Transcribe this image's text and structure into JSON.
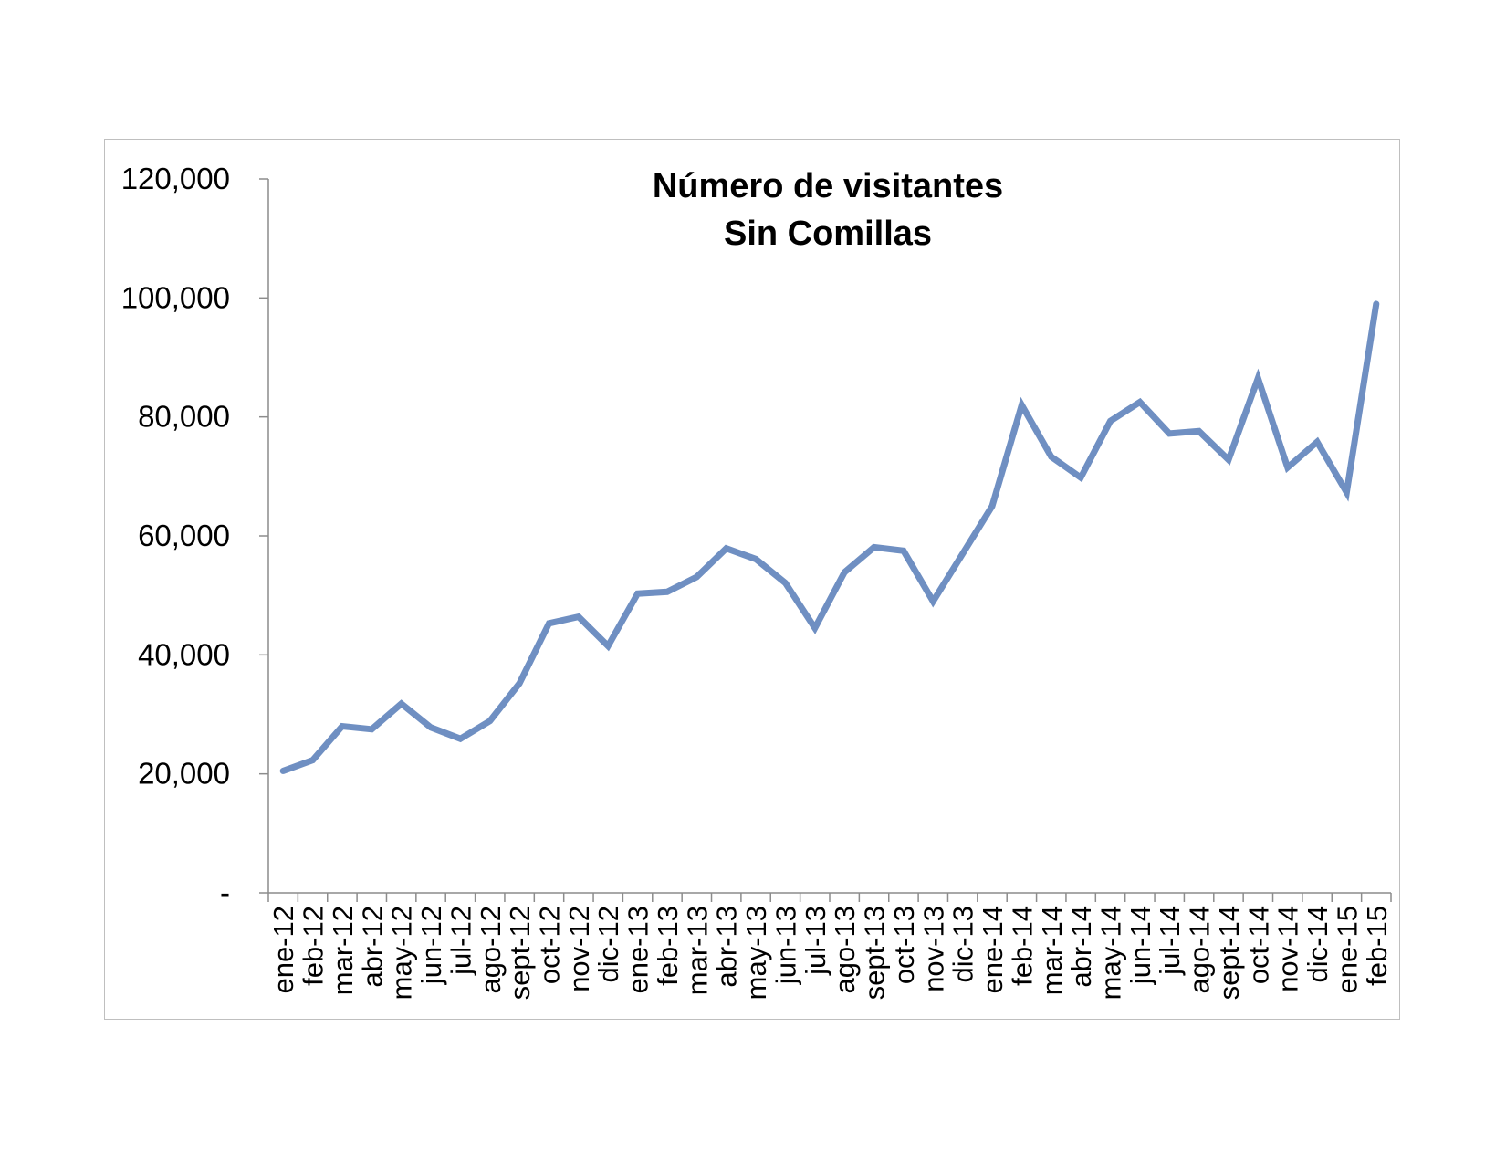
{
  "chart_data": {
    "type": "line",
    "title": [
      "Número de visitantes",
      "Sin Comillas"
    ],
    "xlabel": "",
    "ylabel": "",
    "ylim": [
      0,
      120000
    ],
    "yticks": [
      0,
      20000,
      40000,
      60000,
      80000,
      100000,
      120000
    ],
    "ytick_labels": [
      "-",
      "20,000",
      "40,000",
      "60,000",
      "80,000",
      "100,000",
      "120,000"
    ],
    "grid": false,
    "legend": "none",
    "line_color": "#6f8fc2",
    "categories": [
      "ene-12",
      "feb-12",
      "mar-12",
      "abr-12",
      "may-12",
      "jun-12",
      "jul-12",
      "ago-12",
      "sept-12",
      "oct-12",
      "nov-12",
      "dic-12",
      "ene-13",
      "feb-13",
      "mar-13",
      "abr-13",
      "may-13",
      "jun-13",
      "jul-13",
      "ago-13",
      "sept-13",
      "oct-13",
      "nov-13",
      "dic-13",
      "ene-14",
      "feb-14",
      "mar-14",
      "abr-14",
      "may-14",
      "jun-14",
      "jul-14",
      "ago-14",
      "sept-14",
      "oct-14",
      "nov-14",
      "dic-14",
      "ene-15",
      "feb-15"
    ],
    "series": [
      {
        "values": [
          20500,
          22300,
          28000,
          27500,
          31800,
          27800,
          25900,
          28900,
          35200,
          45300,
          46400,
          41500,
          50300,
          50600,
          53100,
          57900,
          56100,
          52100,
          44500,
          53900,
          58100,
          57500,
          49000,
          57000,
          65000,
          82000,
          73300,
          69800,
          79300,
          82500,
          77200,
          77600,
          72800,
          86500,
          71500,
          75800,
          67300,
          99000
        ]
      }
    ]
  }
}
